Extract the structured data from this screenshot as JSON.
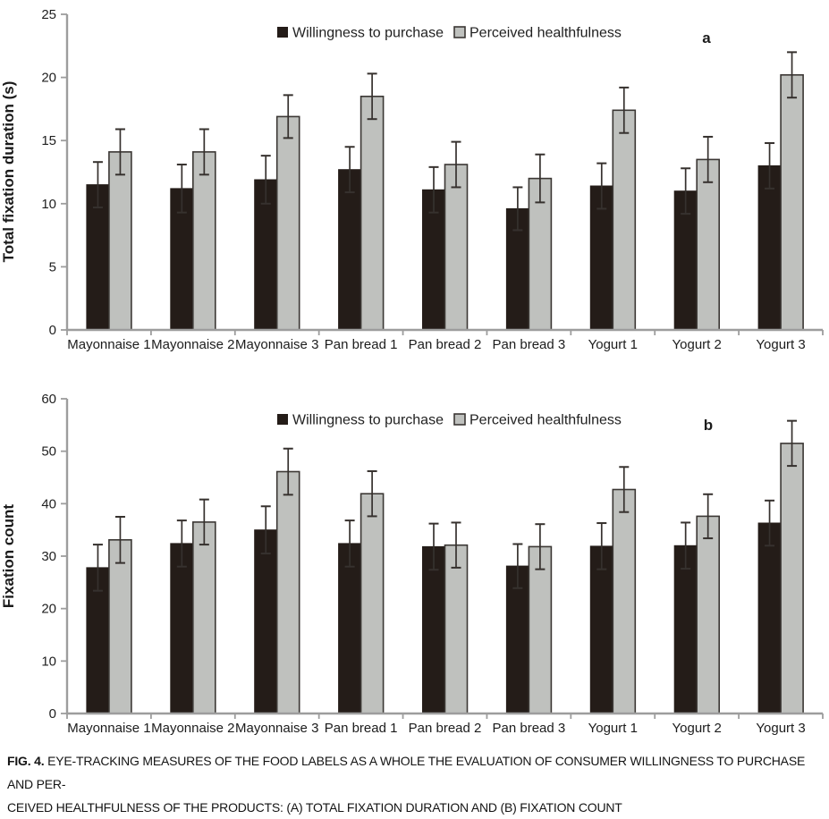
{
  "figure": {
    "caption_prefix": "FIG. 4.",
    "caption_line1": "EYE-TRACKING MEASURES OF THE FOOD LABELS AS A WHOLE THE EVALUATION OF CONSUMER WILLINGNESS TO PURCHASE AND PER-",
    "caption_line2": "CEIVED HEALTHFULNESS OF THE PRODUCTS: (A) TOTAL FIXATION DURATION AND (B) FIXATION COUNT"
  },
  "colors": {
    "willingness_bar": "#241c18",
    "healthfulness_bar": "#bfc1be",
    "bar_border": "#3b3734",
    "axis": "#9d9d9d",
    "error_bar": "#36312e",
    "text": "#1f1f1f"
  },
  "chart_data": [
    {
      "id": "a",
      "type": "bar",
      "panel_label": "a",
      "title": "",
      "xlabel": "",
      "ylabel": "Total fixation duration (s)",
      "ylim": [
        0,
        25
      ],
      "ytick_step": 5,
      "grid": false,
      "legend_position": "top-center",
      "categories": [
        "Mayonnaise 1",
        "Mayonnaise 2",
        "Mayonnaise 3",
        "Pan bread 1",
        "Pan bread 2",
        "Pan bread 3",
        "Yogurt 1",
        "Yogurt 2",
        "Yogurt 3"
      ],
      "series": [
        {
          "name": "Willingness to purchase",
          "color": "#241c18",
          "values": [
            11.5,
            11.2,
            11.9,
            12.7,
            11.1,
            9.6,
            11.4,
            11.0,
            13.0
          ],
          "errors": [
            1.8,
            1.9,
            1.9,
            1.8,
            1.8,
            1.7,
            1.8,
            1.8,
            1.8
          ]
        },
        {
          "name": "Perceived healthfulness",
          "color": "#bfc1be",
          "values": [
            14.1,
            14.1,
            16.9,
            18.5,
            13.1,
            12.0,
            17.4,
            13.5,
            20.2
          ],
          "errors": [
            1.8,
            1.8,
            1.7,
            1.8,
            1.8,
            1.9,
            1.8,
            1.8,
            1.8
          ]
        }
      ]
    },
    {
      "id": "b",
      "type": "bar",
      "panel_label": "b",
      "title": "",
      "xlabel": "",
      "ylabel": "Fixation count",
      "ylim": [
        0,
        60
      ],
      "ytick_step": 10,
      "grid": false,
      "legend_position": "top-center",
      "categories": [
        "Mayonnaise 1",
        "Mayonnaise 2",
        "Mayonnaise 3",
        "Pan bread 1",
        "Pan bread 2",
        "Pan bread 3",
        "Yogurt 1",
        "Yogurt 2",
        "Yogurt 3"
      ],
      "series": [
        {
          "name": "Willingness to purchase",
          "color": "#241c18",
          "values": [
            27.8,
            32.4,
            35.0,
            32.4,
            31.8,
            28.1,
            31.9,
            32.0,
            36.3
          ],
          "errors": [
            4.4,
            4.4,
            4.5,
            4.4,
            4.4,
            4.2,
            4.4,
            4.4,
            4.3
          ]
        },
        {
          "name": "Perceived healthfulness",
          "color": "#bfc1be",
          "values": [
            33.1,
            36.5,
            46.1,
            41.9,
            32.1,
            31.8,
            42.7,
            37.6,
            51.5
          ],
          "errors": [
            4.4,
            4.3,
            4.4,
            4.3,
            4.3,
            4.3,
            4.3,
            4.2,
            4.3
          ]
        }
      ]
    }
  ]
}
